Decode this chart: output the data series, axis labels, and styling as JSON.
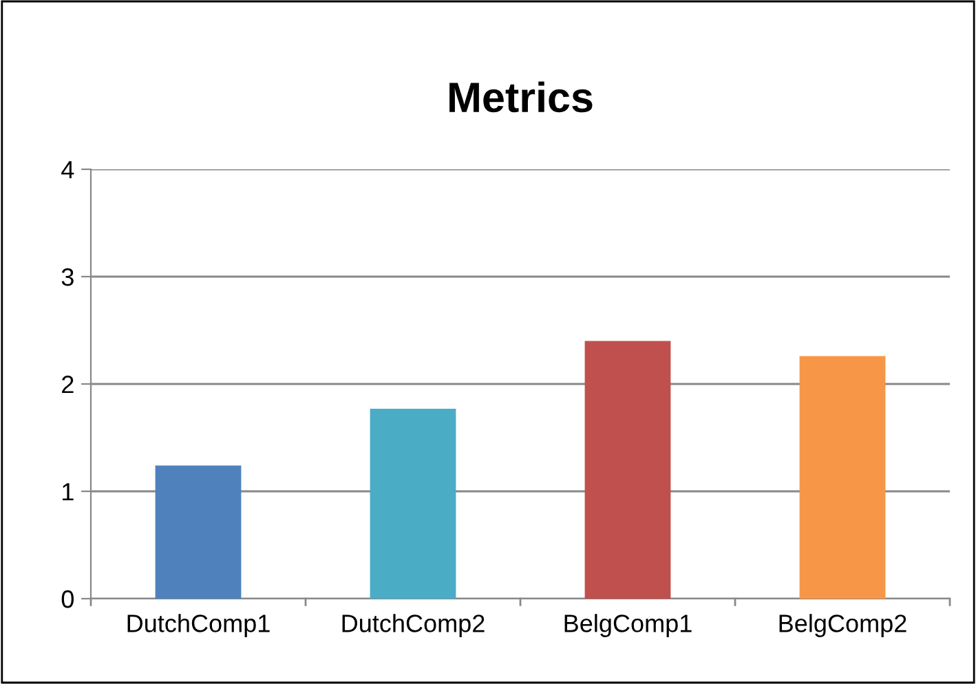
{
  "chart_data": {
    "type": "bar",
    "title": "Metrics",
    "categories": [
      "DutchComp1",
      "DutchComp2",
      "BelgComp1",
      "BelgComp2"
    ],
    "values": [
      1.24,
      1.77,
      2.4,
      2.26
    ],
    "colors": [
      "#4f81bd",
      "#4bacc6",
      "#c0504d",
      "#f79646"
    ],
    "ylim": [
      0,
      4
    ],
    "yticks": [
      0,
      1,
      2,
      3,
      4
    ],
    "grid": "y"
  }
}
